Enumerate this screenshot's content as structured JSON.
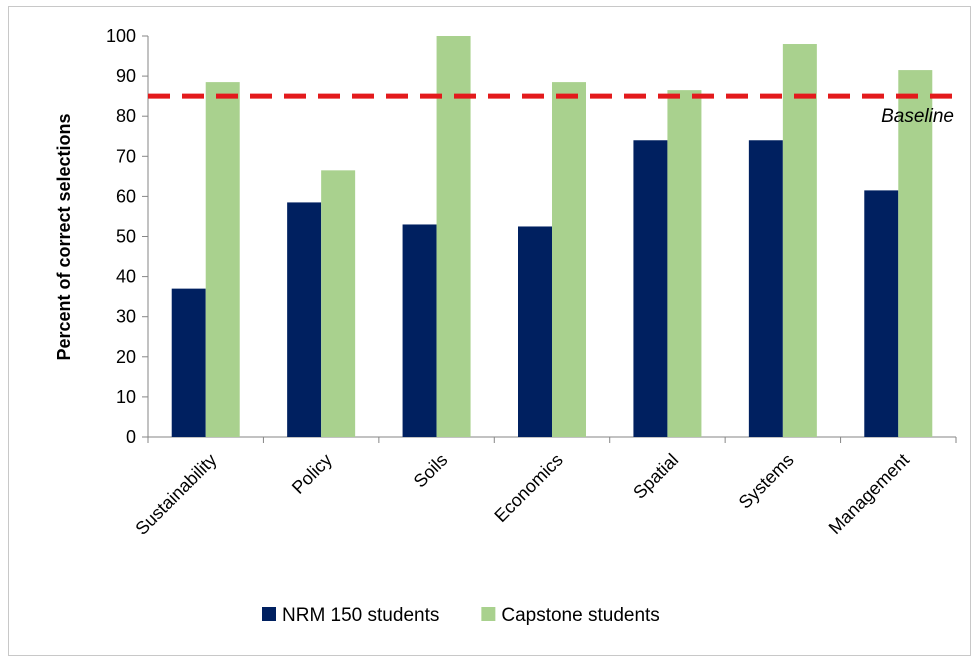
{
  "chart_data": {
    "type": "bar",
    "ylabel": "Percent of correct selections",
    "ylim": [
      0,
      100
    ],
    "yticks": [
      "0",
      "10",
      "20",
      "30",
      "40",
      "50",
      "60",
      "70",
      "80",
      "90",
      "100"
    ],
    "categories": [
      "Sustainability",
      "Policy",
      "Soils",
      "Economics",
      "Spatial",
      "Systems",
      "Management"
    ],
    "series": [
      {
        "name": "NRM 150 students",
        "color": "#002060",
        "values": [
          37,
          58.5,
          53,
          52.5,
          74,
          74,
          61.5
        ]
      },
      {
        "name": "Capstone students",
        "color": "#a9d18e",
        "values": [
          88.5,
          66.5,
          100,
          88.5,
          86.5,
          98,
          91.5
        ]
      }
    ],
    "reference_line": {
      "value": 85,
      "label": "Baseline",
      "color": "#e31a1c",
      "style": "dashed"
    },
    "grid": false,
    "legend": "bottom"
  }
}
